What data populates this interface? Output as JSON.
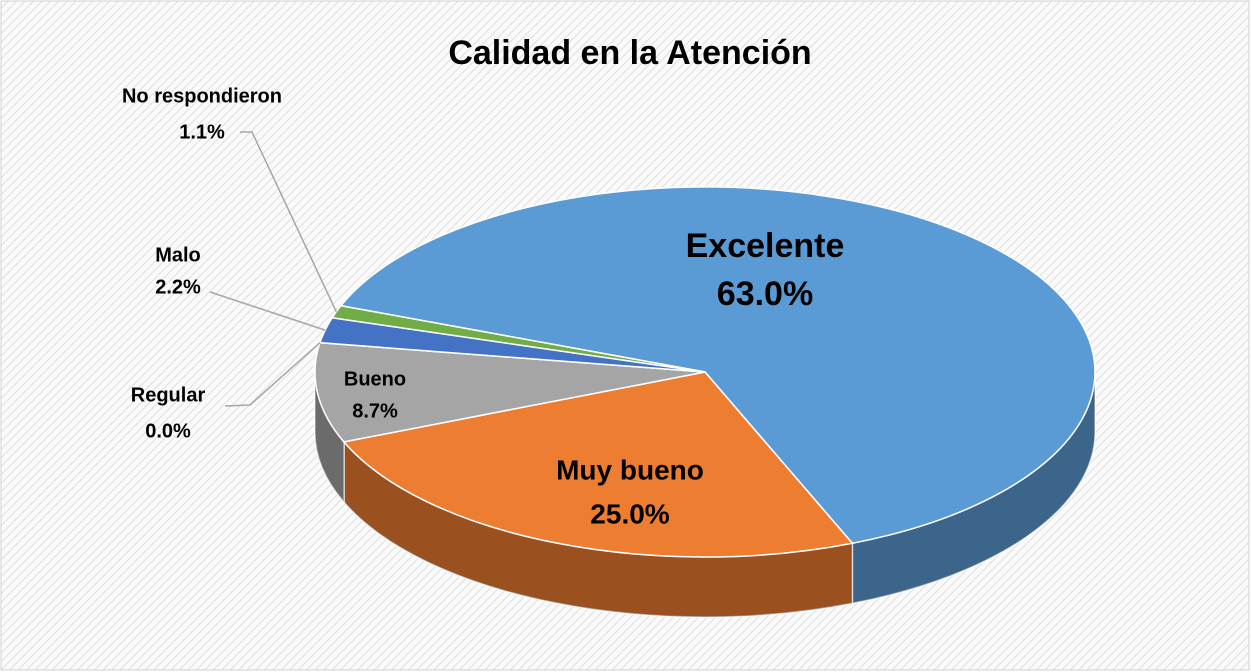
{
  "chart_data": {
    "type": "pie",
    "title": "Calidad en la Atención",
    "categories": [
      "Excelente",
      "Muy bueno",
      "Bueno",
      "Regular",
      "Malo",
      "No respondieron"
    ],
    "values": [
      63.0,
      25.0,
      8.7,
      0.0,
      2.2,
      1.1
    ],
    "value_labels": [
      "63.0%",
      "25.0%",
      "8.7%",
      "0.0%",
      "2.2%",
      "1.1%"
    ],
    "colors": [
      "#5b9bd5",
      "#ed7d31",
      "#a5a5a5",
      "#ffc000",
      "#4472c4",
      "#70ad47"
    ]
  }
}
